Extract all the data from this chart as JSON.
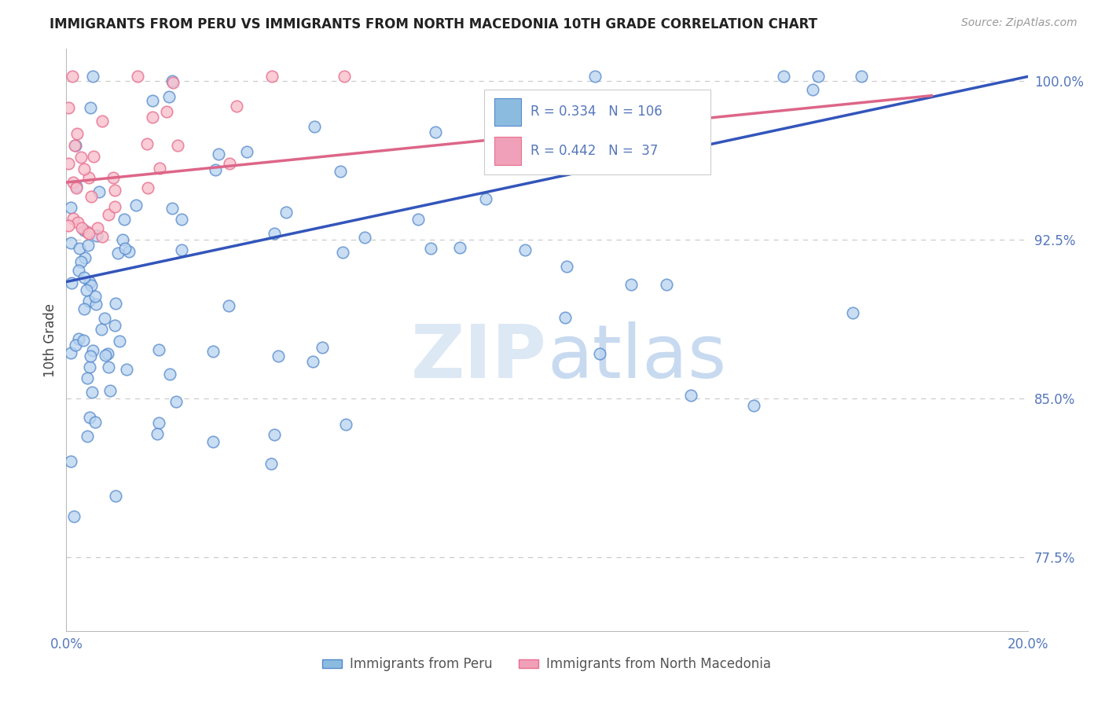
{
  "title": "IMMIGRANTS FROM PERU VS IMMIGRANTS FROM NORTH MACEDONIA 10TH GRADE CORRELATION CHART",
  "source_text": "Source: ZipAtlas.com",
  "ylabel": "10th Grade",
  "xlim": [
    0.0,
    0.2
  ],
  "ylim": [
    0.74,
    1.015
  ],
  "xtick_positions": [
    0.0,
    0.05,
    0.1,
    0.15,
    0.2
  ],
  "xtick_labels": [
    "0.0%",
    "",
    "",
    "",
    "20.0%"
  ],
  "ytick_labels": [
    "77.5%",
    "85.0%",
    "92.5%",
    "100.0%"
  ],
  "ytick_values": [
    0.775,
    0.85,
    0.925,
    1.0
  ],
  "R_peru": 0.334,
  "N_peru": 106,
  "R_macedonia": 0.442,
  "N_macedonia": 37,
  "blue_face": "#b8d4f0",
  "blue_edge": "#5588cc",
  "pink_face": "#f8c0cc",
  "pink_edge": "#e87090",
  "blue_line": "#3355bb",
  "pink_line": "#dd6688",
  "legend_blue_face": "#8bbce0",
  "legend_pink_face": "#f0a0b8",
  "watermark_color": "#dde8f5",
  "title_color": "#222222",
  "tick_color": "#5577bb",
  "grid_color": "#cccccc",
  "bg_color": "#ffffff",
  "blue_line_x0": 0.0,
  "blue_line_y0": 0.905,
  "blue_line_x1": 0.2,
  "blue_line_y1": 1.002,
  "pink_line_x0": 0.0,
  "pink_line_x1": 0.18,
  "pink_line_y0": 0.952,
  "pink_line_y1": 0.993
}
